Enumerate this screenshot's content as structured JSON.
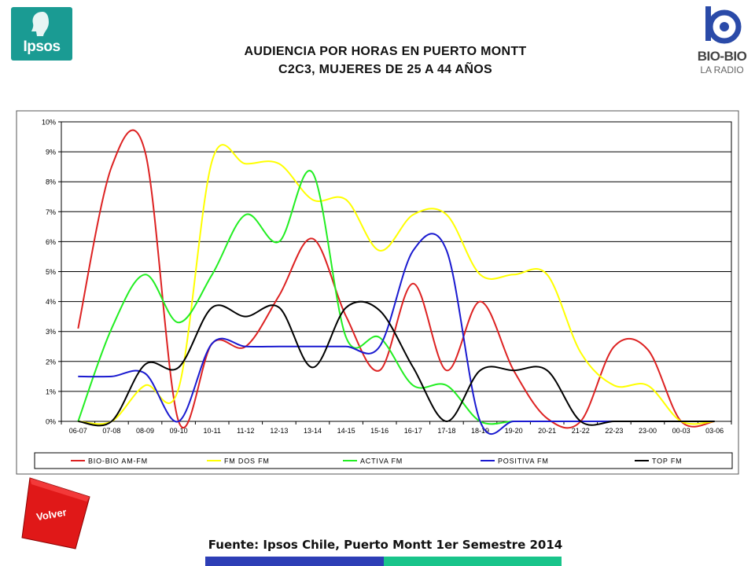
{
  "logos": {
    "ipsos": {
      "text": "Ipsos"
    },
    "biobio": {
      "line1": "BIO-BIO",
      "line2": "LA RADIO"
    }
  },
  "title": {
    "line1": "AUDIENCIA POR HORAS EN PUERTO MONTT",
    "line2": "C2C3, MUJERES DE 25 A 44 AÑOS"
  },
  "chart_data": {
    "type": "line",
    "x": [
      "06-07",
      "07-08",
      "08-09",
      "09-10",
      "10-11",
      "11-12",
      "12-13",
      "13-14",
      "14-15",
      "15-16",
      "16-17",
      "17-18",
      "18-19",
      "19-20",
      "20-21",
      "21-22",
      "22-23",
      "23-00",
      "00-03",
      "03-06"
    ],
    "y_ticks": [
      "0%",
      "1%",
      "2%",
      "3%",
      "4%",
      "5%",
      "6%",
      "7%",
      "8%",
      "9%",
      "10%"
    ],
    "ylim": [
      0,
      10
    ],
    "grid": true,
    "legend_position": "bottom",
    "series": [
      {
        "name": "BIO-BIO AM-FM",
        "color": "#dd2222",
        "values": [
          3.1,
          8.5,
          9.0,
          0,
          2.6,
          2.5,
          4.2,
          6.1,
          3.5,
          1.7,
          4.6,
          1.7,
          4.0,
          1.7,
          0.1,
          0,
          2.5,
          2.4,
          0,
          0
        ]
      },
      {
        "name": "FM DOS FM",
        "color": "#ffff00",
        "values": [
          0,
          0,
          1.2,
          1.1,
          8.7,
          8.6,
          8.6,
          7.4,
          7.4,
          5.7,
          6.9,
          6.9,
          4.9,
          4.9,
          4.9,
          2.3,
          1.2,
          1.2,
          0,
          0
        ]
      },
      {
        "name": "ACTIVA FM",
        "color": "#22ee22",
        "values": [
          0,
          3.1,
          4.9,
          3.3,
          4.9,
          6.9,
          6.0,
          8.3,
          2.8,
          2.8,
          1.2,
          1.2,
          0,
          0,
          0,
          0,
          0,
          0,
          0,
          0
        ]
      },
      {
        "name": "POSITIVA FM",
        "color": "#1a1ad0",
        "values": [
          1.5,
          1.5,
          1.6,
          0,
          2.6,
          2.5,
          2.5,
          2.5,
          2.5,
          2.5,
          5.7,
          5.7,
          0,
          0,
          0,
          0,
          0,
          0,
          0,
          0
        ]
      },
      {
        "name": "TOP FM",
        "color": "#000000",
        "values": [
          0,
          0,
          1.9,
          1.8,
          3.8,
          3.5,
          3.8,
          1.8,
          3.8,
          3.7,
          1.8,
          0,
          1.7,
          1.7,
          1.7,
          0,
          0,
          0,
          0,
          0
        ]
      }
    ]
  },
  "volver": {
    "label": "Volver"
  },
  "source": "Fuente: Ipsos Chile, Puerto Montt 1er Semestre 2014"
}
